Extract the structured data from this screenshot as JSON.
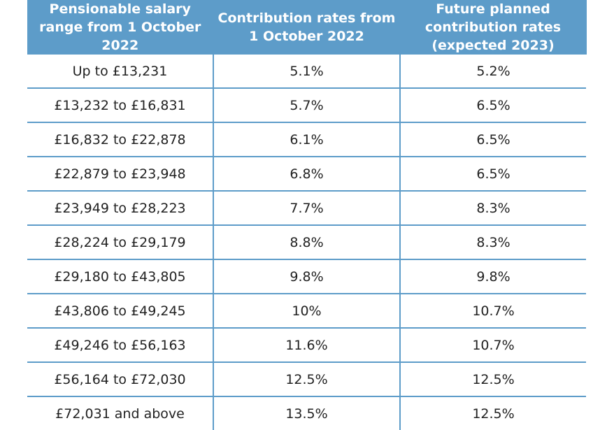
{
  "header": {
    "col1": "Pensionable salary range from 1 October 2022",
    "col2": "Contribution rates from 1 October 2022",
    "col3": "Future planned contribution rates (expected 2023)"
  },
  "rows": [
    {
      "range": "Up to £13,231",
      "current": "5.1%",
      "future": "5.2%"
    },
    {
      "range": "£13,232 to £16,831",
      "current": "5.7%",
      "future": "6.5%"
    },
    {
      "range": "£16,832 to £22,878",
      "current": "6.1%",
      "future": "6.5%"
    },
    {
      "range": "£22,879 to £23,948",
      "current": "6.8%",
      "future": "6.5%"
    },
    {
      "range": "£23,949 to £28,223",
      "current": "7.7%",
      "future": "8.3%"
    },
    {
      "range": "£28,224 to £29,179",
      "current": "8.8%",
      "future": "8.3%"
    },
    {
      "range": "£29,180 to £43,805",
      "current": "9.8%",
      "future": "9.8%"
    },
    {
      "range": "£43,806 to £49,245",
      "current": "10%",
      "future": "10.7%"
    },
    {
      "range": "£49,246 to £56,163",
      "current": "11.6%",
      "future": "10.7%"
    },
    {
      "range": "£56,164 to £72,030",
      "current": "12.5%",
      "future": "12.5%"
    },
    {
      "range": "£72,031 and above",
      "current": "13.5%",
      "future": "12.5%"
    }
  ],
  "colors": {
    "header_bg": "#5d9cc9",
    "header_text": "#ffffff",
    "divider": "#5d9cc9",
    "body_text": "#222222"
  }
}
